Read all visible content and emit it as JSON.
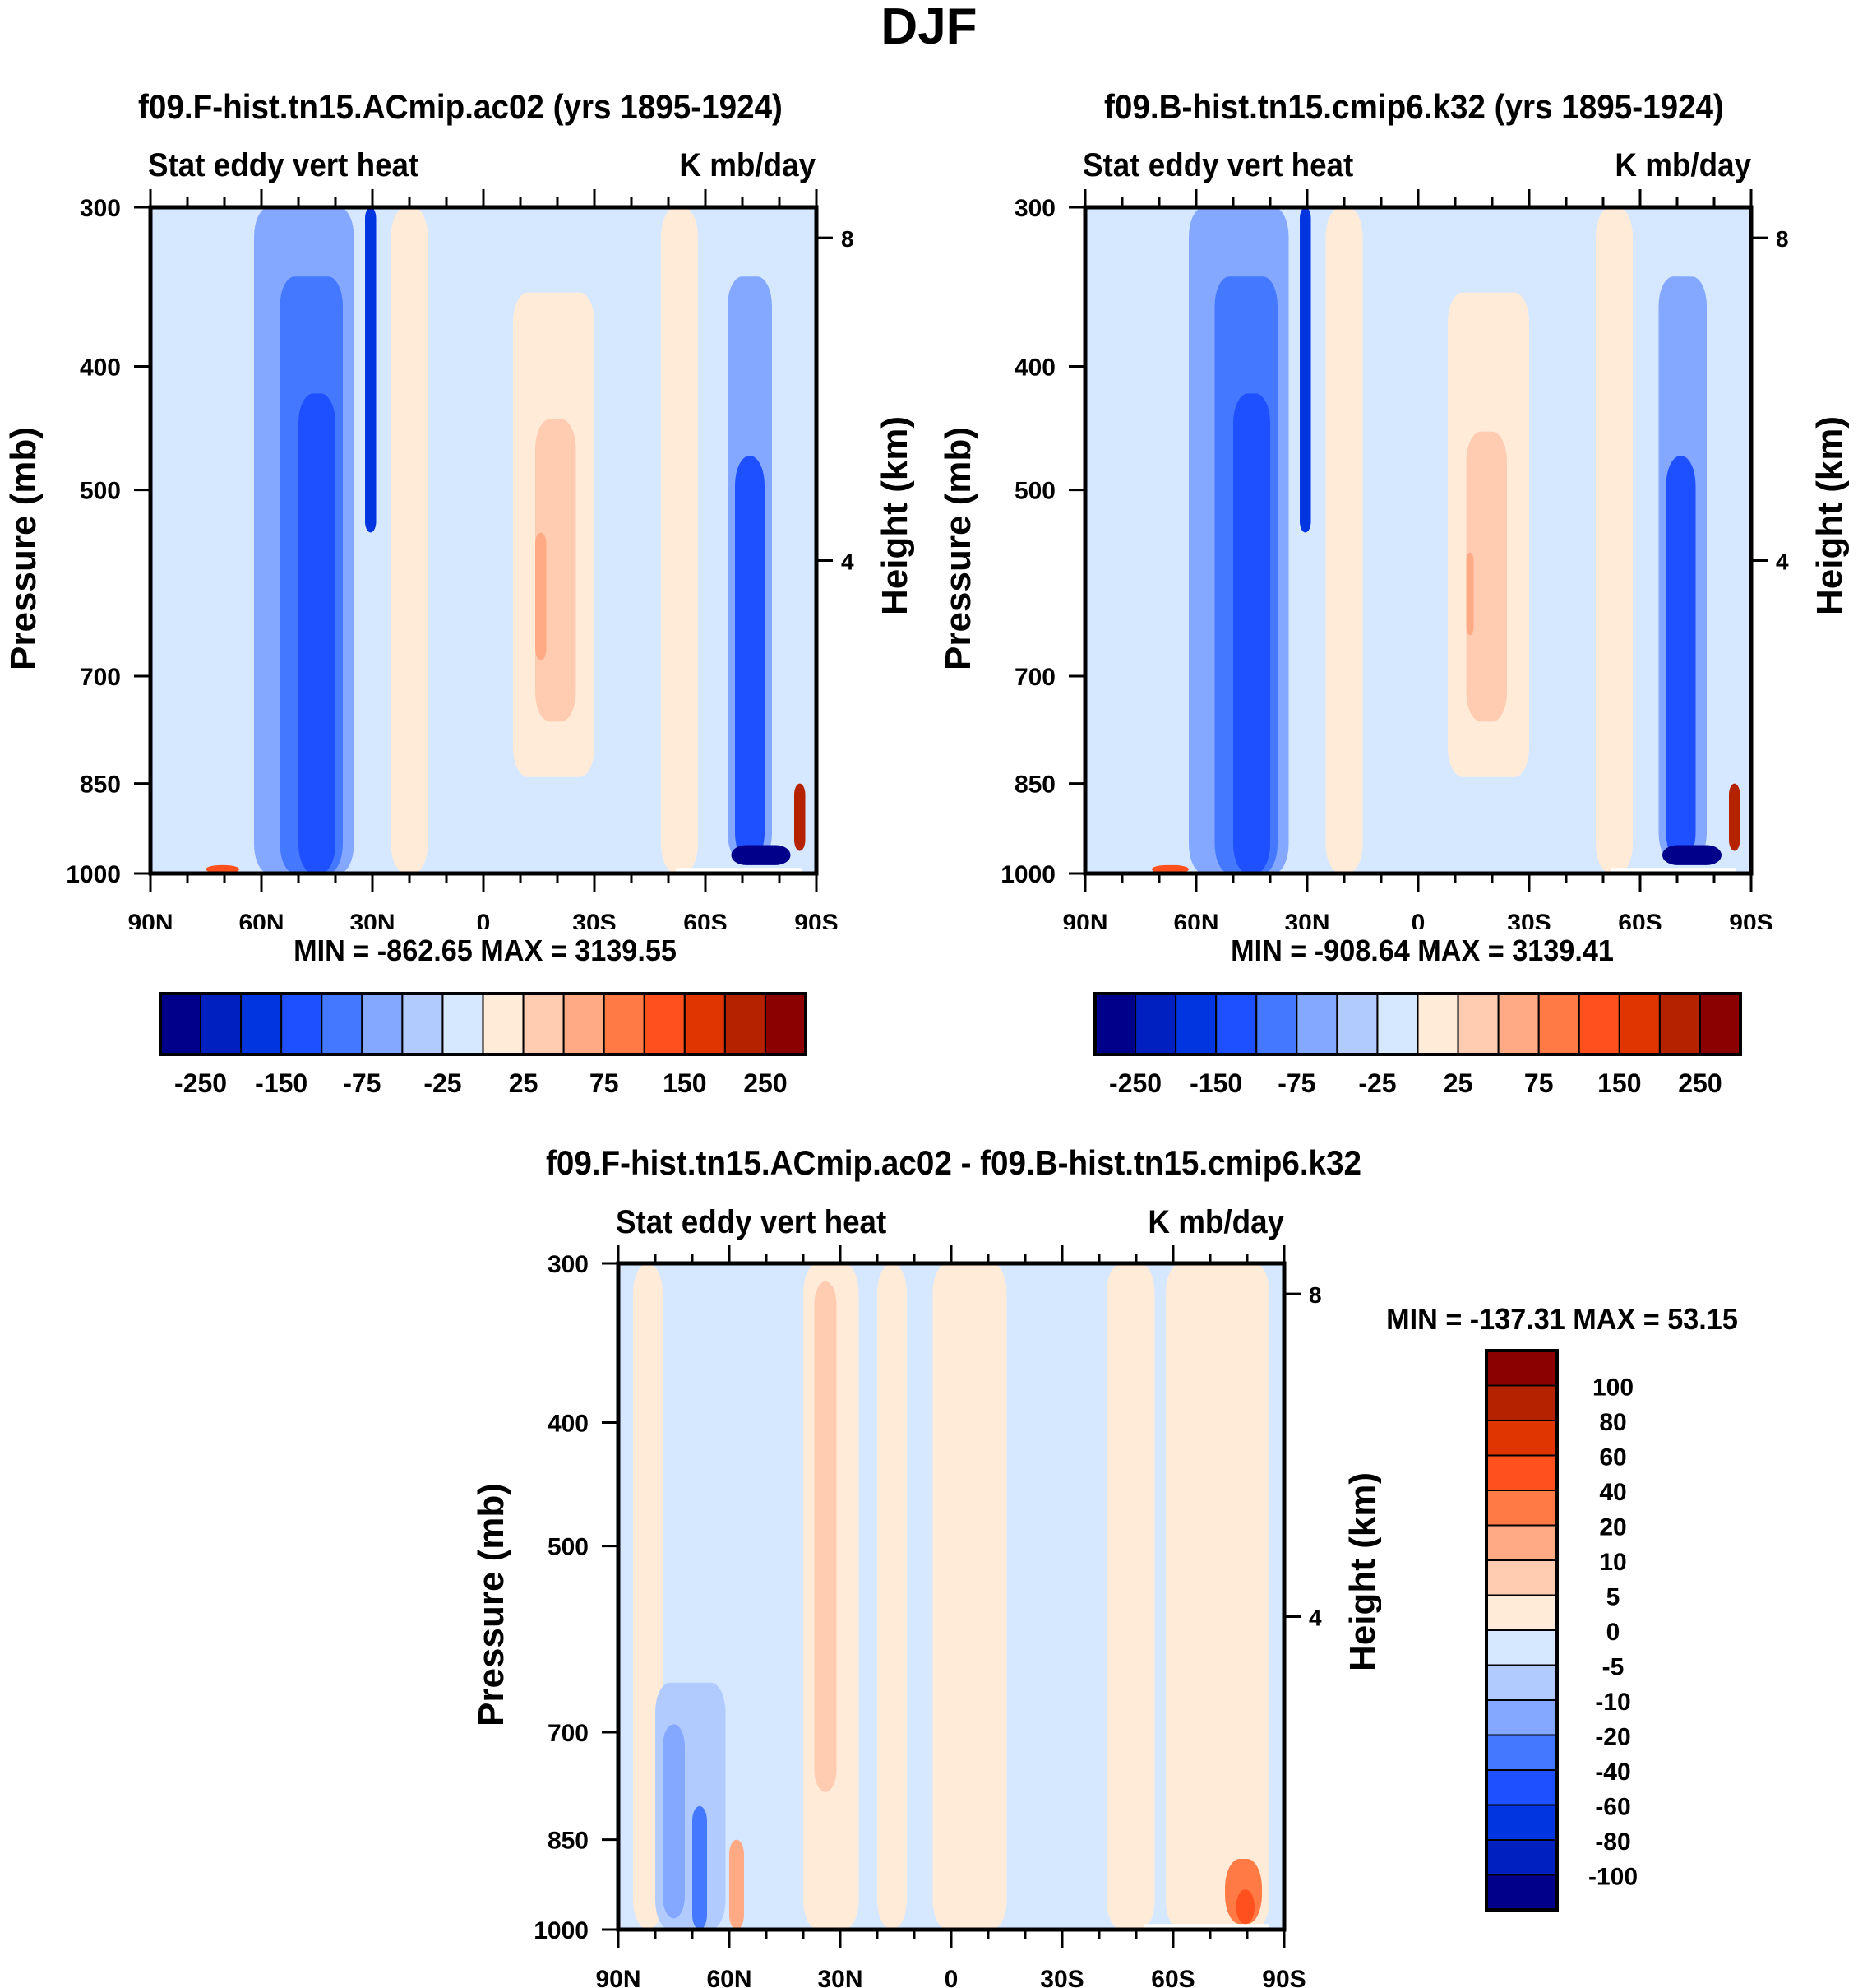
{
  "figure_title": "DJF",
  "colors": {
    "cmap16": [
      "#00008b",
      "#0020c0",
      "#0035e0",
      "#1e50ff",
      "#4478ff",
      "#84a8ff",
      "#b2cbff",
      "#d6e8ff",
      "#ffebd8",
      "#ffccb2",
      "#ffaa84",
      "#ff7a44",
      "#ff501e",
      "#e03500",
      "#b42200",
      "#8b0000"
    ]
  },
  "chart_data": [
    {
      "type": "heatmap",
      "panel": "top-left",
      "title": "f09.F-hist.tn15.ACmip.ac02 (yrs 1895-1924)",
      "left_string": "Stat eddy vert heat",
      "right_string": "K mb/day",
      "xlabel": "",
      "ylabel": "Pressure (mb)",
      "ylabel_right": "Height (km)",
      "x_ticks": [
        "90N",
        "60N",
        "30N",
        "0",
        "30S",
        "60S",
        "90S"
      ],
      "x_range_deg": [
        90,
        -90
      ],
      "y_ticks": [
        "300",
        "400",
        "500",
        "700",
        "850",
        "1000"
      ],
      "y_tick_values": [
        300,
        400,
        500,
        700,
        850,
        1000
      ],
      "y_range_mb": [
        300,
        1000
      ],
      "y_right_ticks": [
        "8",
        "4"
      ],
      "y_right_tick_values_km": [
        8,
        4
      ],
      "min_max_text": "MIN = -862.65  MAX = 3139.55",
      "min": -862.65,
      "max": 3139.55,
      "colorbar": {
        "orientation": "horizontal",
        "levels": [
          -300,
          -250,
          -200,
          -150,
          -100,
          -75,
          -50,
          -25,
          0,
          25,
          50,
          75,
          100,
          150,
          200,
          250,
          300
        ],
        "labels": [
          "-250",
          "-150",
          "-75",
          "-25",
          "25",
          "75",
          "150",
          "250"
        ]
      },
      "features": [
        {
          "lat_from": 90,
          "lat_to": 80,
          "p_from": 300,
          "p_to": 1000,
          "level_index": 7
        },
        {
          "lat_from": 62,
          "lat_to": 35,
          "p_from": 300,
          "p_to": 1000,
          "level_index": 5
        },
        {
          "lat_from": 55,
          "lat_to": 38,
          "p_from": 340,
          "p_to": 1000,
          "level_index": 4
        },
        {
          "lat_from": 50,
          "lat_to": 40,
          "p_from": 420,
          "p_to": 1000,
          "level_index": 3
        },
        {
          "lat_from": 32,
          "lat_to": 29,
          "p_from": 300,
          "p_to": 540,
          "level_index": 2
        },
        {
          "lat_from": 25,
          "lat_to": 15,
          "p_from": 300,
          "p_to": 1000,
          "level_index": 8
        },
        {
          "lat_from": -8,
          "lat_to": -30,
          "p_from": 350,
          "p_to": 840,
          "level_index": 8
        },
        {
          "lat_from": -14,
          "lat_to": -25,
          "p_from": 440,
          "p_to": 760,
          "level_index": 9
        },
        {
          "lat_from": -14,
          "lat_to": -17,
          "p_from": 540,
          "p_to": 680,
          "level_index": 10
        },
        {
          "lat_from": -48,
          "lat_to": -58,
          "p_from": 300,
          "p_to": 1000,
          "level_index": 8
        },
        {
          "lat_from": -66,
          "lat_to": -78,
          "p_from": 340,
          "p_to": 980,
          "level_index": 5
        },
        {
          "lat_from": -68,
          "lat_to": -76,
          "p_from": 470,
          "p_to": 980,
          "level_index": 3
        },
        {
          "lat_from": -67,
          "lat_to": -83,
          "p_from": 950,
          "p_to": 985,
          "level_index": 0
        },
        {
          "lat_from": -84,
          "lat_to": -87,
          "p_from": 850,
          "p_to": 960,
          "level_index": 14
        },
        {
          "lat_from": 75,
          "lat_to": 66,
          "p_from": 985,
          "p_to": 1000,
          "level_index": 12
        }
      ]
    },
    {
      "type": "heatmap",
      "panel": "top-right",
      "title": "f09.B-hist.tn15.cmip6.k32 (yrs 1895-1924)",
      "left_string": "Stat eddy vert heat",
      "right_string": "K mb/day",
      "xlabel": "",
      "ylabel": "Pressure (mb)",
      "ylabel_right": "Height (km)",
      "x_ticks": [
        "90N",
        "60N",
        "30N",
        "0",
        "30S",
        "60S",
        "90S"
      ],
      "x_range_deg": [
        90,
        -90
      ],
      "y_ticks": [
        "300",
        "400",
        "500",
        "700",
        "850",
        "1000"
      ],
      "y_tick_values": [
        300,
        400,
        500,
        700,
        850,
        1000
      ],
      "y_range_mb": [
        300,
        1000
      ],
      "y_right_ticks": [
        "8",
        "4"
      ],
      "y_right_tick_values_km": [
        8,
        4
      ],
      "min_max_text": "MIN = -908.64  MAX = 3139.41",
      "min": -908.64,
      "max": 3139.41,
      "colorbar": {
        "orientation": "horizontal",
        "levels": [
          -300,
          -250,
          -200,
          -150,
          -100,
          -75,
          -50,
          -25,
          0,
          25,
          50,
          75,
          100,
          150,
          200,
          250,
          300
        ],
        "labels": [
          "-250",
          "-150",
          "-75",
          "-25",
          "25",
          "75",
          "150",
          "250"
        ]
      },
      "features": [
        {
          "lat_from": 90,
          "lat_to": 80,
          "p_from": 300,
          "p_to": 1000,
          "level_index": 7
        },
        {
          "lat_from": 62,
          "lat_to": 35,
          "p_from": 300,
          "p_to": 1000,
          "level_index": 5
        },
        {
          "lat_from": 55,
          "lat_to": 38,
          "p_from": 340,
          "p_to": 1000,
          "level_index": 4
        },
        {
          "lat_from": 50,
          "lat_to": 40,
          "p_from": 420,
          "p_to": 1000,
          "level_index": 3
        },
        {
          "lat_from": 32,
          "lat_to": 29,
          "p_from": 300,
          "p_to": 540,
          "level_index": 2
        },
        {
          "lat_from": 25,
          "lat_to": 15,
          "p_from": 300,
          "p_to": 1000,
          "level_index": 8
        },
        {
          "lat_from": -8,
          "lat_to": -30,
          "p_from": 350,
          "p_to": 840,
          "level_index": 8
        },
        {
          "lat_from": -13,
          "lat_to": -24,
          "p_from": 450,
          "p_to": 760,
          "level_index": 9
        },
        {
          "lat_from": -13,
          "lat_to": -15,
          "p_from": 560,
          "p_to": 650,
          "level_index": 10
        },
        {
          "lat_from": -48,
          "lat_to": -58,
          "p_from": 300,
          "p_to": 1000,
          "level_index": 8
        },
        {
          "lat_from": -65,
          "lat_to": -78,
          "p_from": 340,
          "p_to": 980,
          "level_index": 5
        },
        {
          "lat_from": -67,
          "lat_to": -75,
          "p_from": 470,
          "p_to": 980,
          "level_index": 3
        },
        {
          "lat_from": -66,
          "lat_to": -82,
          "p_from": 950,
          "p_to": 985,
          "level_index": 0
        },
        {
          "lat_from": -84,
          "lat_to": -87,
          "p_from": 850,
          "p_to": 960,
          "level_index": 14
        },
        {
          "lat_from": 72,
          "lat_to": 62,
          "p_from": 985,
          "p_to": 1000,
          "level_index": 12
        }
      ]
    },
    {
      "type": "heatmap",
      "panel": "bottom",
      "title": "f09.F-hist.tn15.ACmip.ac02 - f09.B-hist.tn15.cmip6.k32",
      "left_string": "Stat eddy vert heat",
      "right_string": "K mb/day",
      "xlabel": "",
      "ylabel": "Pressure (mb)",
      "ylabel_right": "Height (km)",
      "x_ticks": [
        "90N",
        "60N",
        "30N",
        "0",
        "30S",
        "60S",
        "90S"
      ],
      "x_range_deg": [
        90,
        -90
      ],
      "y_ticks": [
        "300",
        "400",
        "500",
        "700",
        "850",
        "1000"
      ],
      "y_tick_values": [
        300,
        400,
        500,
        700,
        850,
        1000
      ],
      "y_range_mb": [
        300,
        1000
      ],
      "y_right_ticks": [
        "8",
        "4"
      ],
      "y_right_tick_values_km": [
        8,
        4
      ],
      "min_max_text": "MIN = -137.31  MAX =  53.15",
      "min": -137.31,
      "max": 53.15,
      "colorbar": {
        "orientation": "vertical",
        "levels": [
          -120,
          -100,
          -80,
          -60,
          -40,
          -20,
          -10,
          -5,
          0,
          5,
          10,
          20,
          40,
          60,
          80,
          100,
          120
        ],
        "labels": [
          "100",
          "80",
          "60",
          "40",
          "20",
          "10",
          "5",
          "0",
          "-5",
          "-10",
          "-20",
          "-40",
          "-60",
          "-80",
          "-100"
        ]
      },
      "features": [
        {
          "lat_from": 86,
          "lat_to": 78,
          "p_from": 300,
          "p_to": 1000,
          "level_index": 8
        },
        {
          "lat_from": 67,
          "lat_to": 40,
          "p_from": 300,
          "p_to": 1000,
          "level_index": 7
        },
        {
          "lat_from": 40,
          "lat_to": 25,
          "p_from": 300,
          "p_to": 1000,
          "level_index": 8
        },
        {
          "lat_from": 37,
          "lat_to": 31,
          "p_from": 310,
          "p_to": 780,
          "level_index": 9
        },
        {
          "lat_from": 20,
          "lat_to": 12,
          "p_from": 300,
          "p_to": 1000,
          "level_index": 8
        },
        {
          "lat_from": 5,
          "lat_to": -15,
          "p_from": 300,
          "p_to": 1000,
          "level_index": 8
        },
        {
          "lat_from": -42,
          "lat_to": -55,
          "p_from": 300,
          "p_to": 1000,
          "level_index": 8
        },
        {
          "lat_from": -58,
          "lat_to": -86,
          "p_from": 300,
          "p_to": 1000,
          "level_index": 8
        },
        {
          "lat_from": 80,
          "lat_to": 61,
          "p_from": 640,
          "p_to": 1000,
          "level_index": 6
        },
        {
          "lat_from": 78,
          "lat_to": 72,
          "p_from": 690,
          "p_to": 980,
          "level_index": 5
        },
        {
          "lat_from": 70,
          "lat_to": 66,
          "p_from": 800,
          "p_to": 1000,
          "level_index": 4
        },
        {
          "lat_from": 60,
          "lat_to": 56,
          "p_from": 850,
          "p_to": 1000,
          "level_index": 10
        },
        {
          "lat_from": -74,
          "lat_to": -84,
          "p_from": 880,
          "p_to": 990,
          "level_index": 11
        },
        {
          "lat_from": -77,
          "lat_to": -82,
          "p_from": 930,
          "p_to": 990,
          "level_index": 12
        }
      ]
    }
  ]
}
